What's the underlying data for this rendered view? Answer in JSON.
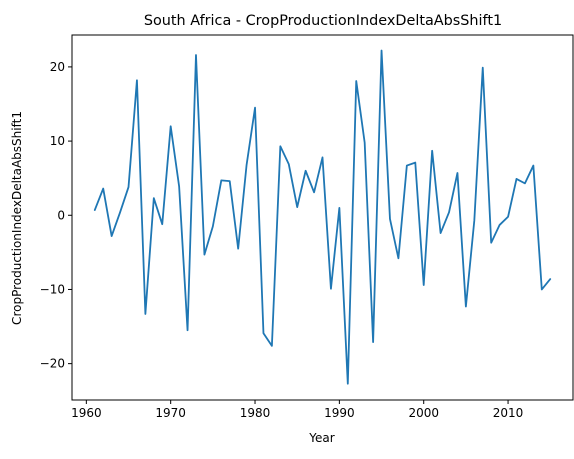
{
  "chart_data": {
    "type": "line",
    "title": "South Africa - CropProductionIndexDeltaAbsShift1",
    "xlabel": "Year",
    "ylabel": "CropProductionIndexDeltaAbsShift1",
    "xlim": [
      1958.3,
      2017.7
    ],
    "ylim": [
      -24.9,
      24.3
    ],
    "xticks": [
      1960,
      1970,
      1980,
      1990,
      2000,
      2010
    ],
    "yticks": [
      -20,
      -10,
      0,
      10,
      20
    ],
    "xtick_labels": [
      "1960",
      "1970",
      "1980",
      "1990",
      "2000",
      "2010"
    ],
    "ytick_labels": [
      "−20",
      "−10",
      "0",
      "10",
      "20"
    ],
    "grid": false,
    "series": [
      {
        "color": "#1f77b4",
        "x": [
          1961,
          1962,
          1963,
          1964,
          1965,
          1966,
          1967,
          1968,
          1969,
          1970,
          1971,
          1972,
          1973,
          1974,
          1975,
          1976,
          1977,
          1978,
          1979,
          1980,
          1981,
          1982,
          1983,
          1984,
          1985,
          1986,
          1987,
          1988,
          1989,
          1990,
          1991,
          1992,
          1993,
          1994,
          1995,
          1996,
          1997,
          1998,
          1999,
          2000,
          2001,
          2002,
          2003,
          2004,
          2005,
          2006,
          2007,
          2008,
          2009,
          2010,
          2011,
          2012,
          2013,
          2014,
          2015
        ],
        "y": [
          0.7,
          3.6,
          -2.8,
          0.4,
          3.8,
          18.2,
          -13.3,
          2.3,
          -1.2,
          12.0,
          3.9,
          -15.5,
          21.6,
          -5.3,
          -1.5,
          4.7,
          4.6,
          -4.5,
          6.8,
          14.5,
          -15.9,
          -17.6,
          9.3,
          6.9,
          1.1,
          6.0,
          3.1,
          7.8,
          -9.9,
          1.0,
          -22.7,
          18.1,
          9.8,
          -17.1,
          22.2,
          -0.5,
          -5.8,
          6.7,
          7.1,
          -9.4,
          8.7,
          -2.4,
          0.4,
          5.7,
          -12.3,
          -0.7,
          19.9,
          -3.7,
          -1.3,
          -0.2,
          4.9,
          4.3,
          6.7,
          -10.0,
          -8.6
        ]
      }
    ]
  }
}
